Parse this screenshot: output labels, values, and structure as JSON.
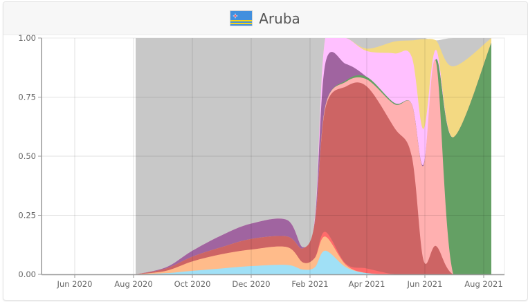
{
  "header": {
    "title": "Aruba",
    "flag_icon": "aruba-flag-icon"
  },
  "colors": {
    "grey_other": "#c8c8c8",
    "yellow": "#f3d982",
    "magenta_light": "#ffc0ff",
    "purple": "#a064a0",
    "green": "#64a064",
    "pink": "#ffb0b0",
    "dark_red": "#cd6464",
    "bright_red": "#ff6b6b",
    "peach": "#ffbb8a",
    "light_blue": "#a0e0f6"
  },
  "chart_data": {
    "type": "area",
    "title": "Aruba",
    "xlabel": "",
    "ylabel": "",
    "ylim": [
      0,
      1
    ],
    "stacked": true,
    "normalized": true,
    "grid": true,
    "legend": "none",
    "y_ticks": [
      "0.00",
      "0.25",
      "0.50",
      "0.75",
      "1.00"
    ],
    "x_ticks": [
      "Jun 2020",
      "Aug 2020",
      "Oct 2020",
      "Dec 2020",
      "Feb 2021",
      "Apr 2021",
      "Jun 2021",
      "Aug 2021"
    ],
    "x": [
      "Aug 2020",
      "Sep 2020",
      "Oct 2020",
      "Nov 2020",
      "Dec 2020",
      "Jan 2021",
      "mid Jan 2021",
      "Feb 2021",
      "early Mar 2021",
      "Mar 2021",
      "Apr 2021",
      "May 2021",
      "late May 2021",
      "Jun 2021",
      "mid Jun 2021",
      "Jul 2021",
      "Aug 2021"
    ],
    "series": [
      {
        "name": "light blue",
        "values": [
          0.0,
          0.005,
          0.015,
          0.025,
          0.035,
          0.04,
          0.02,
          0.03,
          0.1,
          0.03,
          0.005,
          0.0,
          0.0,
          0.0,
          0.0,
          0.0,
          0.0
        ]
      },
      {
        "name": "peach",
        "values": [
          0.0,
          0.01,
          0.04,
          0.06,
          0.07,
          0.075,
          0.03,
          0.04,
          0.06,
          0.01,
          0.0,
          0.0,
          0.0,
          0.0,
          0.0,
          0.0,
          0.0
        ]
      },
      {
        "name": "bright red",
        "values": [
          0.0,
          0.0,
          0.0,
          0.0,
          0.0,
          0.0,
          0.0,
          0.0,
          0.02,
          0.005,
          0.02,
          0.0,
          0.0,
          0.0,
          0.0,
          0.0,
          0.0
        ]
      },
      {
        "name": "dark red",
        "values": [
          0.0,
          0.01,
          0.02,
          0.03,
          0.045,
          0.045,
          0.06,
          0.15,
          0.52,
          0.75,
          0.77,
          0.62,
          0.5,
          0.06,
          0.12,
          0.0,
          0.0
        ]
      },
      {
        "name": "pink",
        "values": [
          0.0,
          0.0,
          0.0,
          0.0,
          0.0,
          0.0,
          0.0,
          0.0,
          0.01,
          0.02,
          0.03,
          0.1,
          0.22,
          0.4,
          0.78,
          0.0,
          0.0
        ]
      },
      {
        "name": "green",
        "values": [
          0.0,
          0.0,
          0.0,
          0.0,
          0.0,
          0.0,
          0.0,
          0.0,
          0.0,
          0.005,
          0.01,
          0.005,
          0.0,
          0.0,
          0.01,
          0.58,
          0.98
        ]
      },
      {
        "name": "purple",
        "values": [
          0.0,
          0.005,
          0.025,
          0.05,
          0.065,
          0.07,
          0.005,
          0.01,
          0.18,
          0.07,
          0.0,
          0.0,
          0.0,
          0.005,
          0.0,
          0.0,
          0.0
        ]
      },
      {
        "name": "light magenta",
        "values": [
          0.0,
          0.0,
          0.0,
          0.0,
          0.0,
          0.0,
          0.0,
          0.01,
          0.11,
          0.12,
          0.11,
          0.21,
          0.2,
          0.15,
          0.04,
          0.0,
          0.0
        ]
      },
      {
        "name": "yellow",
        "values": [
          0.0,
          0.0,
          0.0,
          0.0,
          0.0,
          0.0,
          0.0,
          0.0,
          0.0,
          0.0,
          0.01,
          0.05,
          0.07,
          0.38,
          0.04,
          0.3,
          0.02
        ]
      },
      {
        "name": "grey (other)",
        "values": [
          1.0,
          0.97,
          0.9,
          0.835,
          0.785,
          0.77,
          0.885,
          0.76,
          0.0,
          0.0,
          0.05,
          0.015,
          0.01,
          0.005,
          0.0,
          0.12,
          0.0
        ]
      }
    ]
  }
}
